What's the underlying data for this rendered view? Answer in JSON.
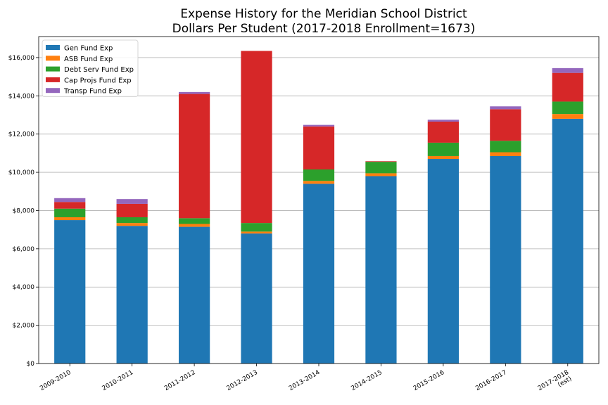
{
  "chart_data": {
    "type": "bar",
    "stacked": true,
    "title": "Expense History for the Meridian School District",
    "subtitle": "Dollars Per Student (2017-2018 Enrollment=1673)",
    "xlabel": "",
    "ylabel": "",
    "ylim": [
      0,
      17100
    ],
    "yticks": [
      0,
      2000,
      4000,
      6000,
      8000,
      10000,
      12000,
      14000,
      16000
    ],
    "ytick_labels": [
      "$0",
      "$2,000",
      "$4,000",
      "$6,000",
      "$8,000",
      "$10,000",
      "$12,000",
      "$14,000",
      "$16,000"
    ],
    "grid": "horizontal",
    "legend_position": "top-left",
    "categories": [
      [
        "2009-2010"
      ],
      [
        "2010-2011"
      ],
      [
        "2011-2012"
      ],
      [
        "2012-2013"
      ],
      [
        "2013-2014"
      ],
      [
        "2014-2015"
      ],
      [
        "2015-2016"
      ],
      [
        "2016-2017"
      ],
      [
        "2017-2018",
        "(est)"
      ]
    ],
    "series": [
      {
        "name": "Gen Fund Exp",
        "color": "#1f77b4",
        "values": [
          7500,
          7200,
          7150,
          6800,
          9400,
          9800,
          10700,
          10850,
          12800
        ]
      },
      {
        "name": "ASB Fund Exp",
        "color": "#ff7f0e",
        "values": [
          150,
          150,
          150,
          100,
          150,
          150,
          150,
          200,
          250
        ]
      },
      {
        "name": "Debt Serv Fund Exp",
        "color": "#2ca02c",
        "values": [
          450,
          300,
          300,
          450,
          600,
          600,
          700,
          600,
          650
        ]
      },
      {
        "name": "Cap Projs Fund Exp",
        "color": "#d62728",
        "values": [
          350,
          700,
          6500,
          9000,
          2250,
          30,
          1100,
          1650,
          1500
        ]
      },
      {
        "name": "Transp Fund Exp",
        "color": "#9467bd",
        "values": [
          200,
          250,
          100,
          0,
          80,
          0,
          100,
          150,
          250
        ]
      }
    ]
  }
}
